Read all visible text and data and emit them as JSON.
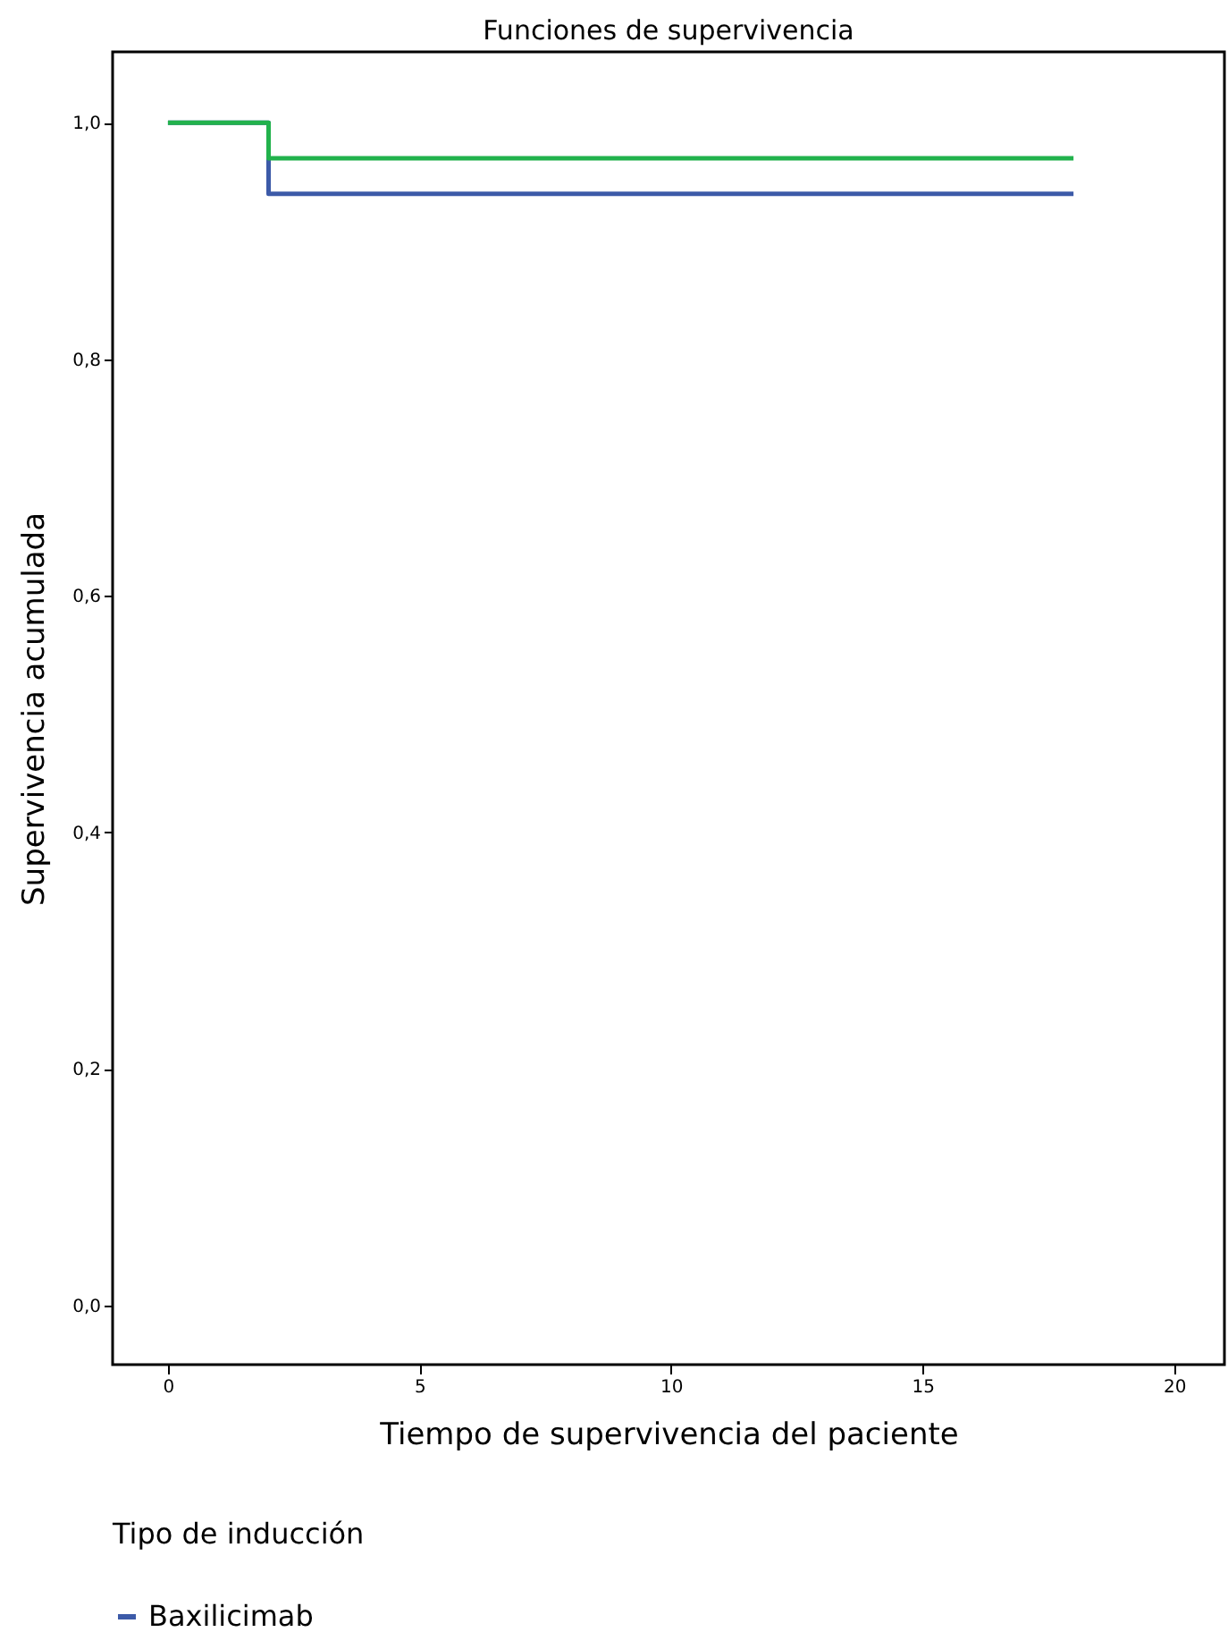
{
  "chart_data": {
    "type": "step",
    "title": "Funciones de supervivencia",
    "xlabel": "Tiempo de supervivencia del paciente",
    "ylabel": "Supervivencia acumulada",
    "legend_title": "Tipo de inducción",
    "x": [
      0,
      2,
      18
    ],
    "series": [
      {
        "name": "Baxilicimab",
        "color": "#3c5aa8",
        "values": [
          1.0,
          0.94,
          0.94
        ]
      },
      {
        "color": "#22b24c",
        "values": [
          1.0,
          0.97,
          0.97
        ]
      }
    ],
    "xlim": [
      -1.1,
      21
    ],
    "xticks": [
      0,
      5,
      10,
      15,
      20
    ],
    "ylim": [
      -0.05,
      1.06
    ],
    "yticks": [
      {
        "value": 0,
        "label": "0,0"
      },
      {
        "value": 0.2,
        "label": "0,2"
      },
      {
        "value": 0.4,
        "label": "0,4"
      },
      {
        "value": 0.6,
        "label": "0,6"
      },
      {
        "value": 0.8,
        "label": "0,8"
      },
      {
        "value": 1.0,
        "label": "1,0"
      }
    ],
    "grid": false,
    "legend": "bottom",
    "marker": "none",
    "line_style": "solid"
  }
}
